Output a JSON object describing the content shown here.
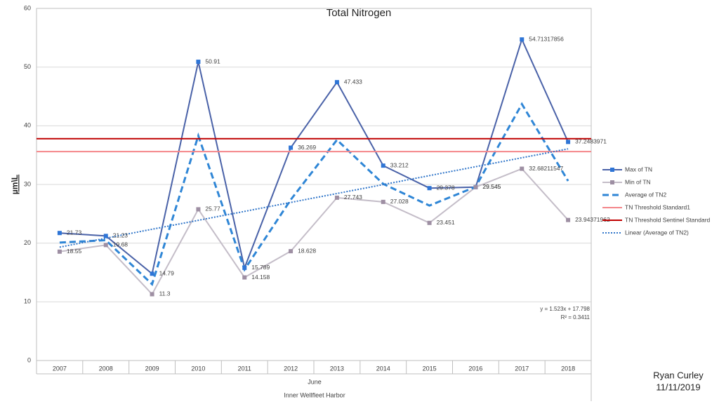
{
  "chart_data": {
    "type": "line",
    "title": "Total Nitrogen",
    "ylabel": "µm\\L",
    "xlabel": "June",
    "xlabel2": "Inner Wellfleet Harbor",
    "categories": [
      "2007",
      "2008",
      "2009",
      "2010",
      "2011",
      "2012",
      "2013",
      "2014",
      "2015",
      "2016",
      "2017",
      "2018"
    ],
    "ylim": [
      0,
      60
    ],
    "yticks": [
      0,
      10,
      20,
      30,
      40,
      50,
      60
    ],
    "grid": true,
    "series": [
      {
        "name": "Max of TN",
        "color": "#4a62a8",
        "marker_color": "#2e75d6",
        "style": "solid",
        "labels": true,
        "values": [
          21.73,
          21.23,
          14.79,
          50.91,
          15.789,
          36.269,
          47.433,
          33.212,
          29.378,
          29.545,
          54.71317856,
          37.2483971
        ]
      },
      {
        "name": "Min of TN",
        "color": "#c4bdc8",
        "marker_color": "#9e8fa3",
        "style": "solid",
        "labels": true,
        "values": [
          18.55,
          19.68,
          11.3,
          25.77,
          14.158,
          18.628,
          27.743,
          27.028,
          23.451,
          29.545,
          32.68211547,
          23.94371962
        ]
      },
      {
        "name": "Average of TN2",
        "color": "#2f86d6",
        "style": "dashed",
        "labels": false,
        "values": [
          20.1,
          20.5,
          13.0,
          38.3,
          15.5,
          27.4,
          37.6,
          30.1,
          26.4,
          29.6,
          43.7,
          30.6
        ]
      },
      {
        "name": "TN Threshold Standard1",
        "color": "#f4868a",
        "style": "hline",
        "value": 35.6
      },
      {
        "name": "TN Threshold Sentinel Standard",
        "color": "#c00000",
        "style": "hline",
        "value": 37.8
      },
      {
        "name": "Linear (Average of TN2)",
        "color": "#2f75c9",
        "style": "dotted",
        "labels": false,
        "values": [
          19.32,
          20.84,
          22.37,
          23.89,
          25.41,
          26.94,
          28.46,
          29.98,
          31.51,
          33.03,
          34.55,
          36.07
        ]
      }
    ],
    "trend_equation": "y = 1.523x + 17.798",
    "trend_r2": "R² = 0.3411",
    "author": "Ryan Curley",
    "date": "11/11/2019"
  }
}
